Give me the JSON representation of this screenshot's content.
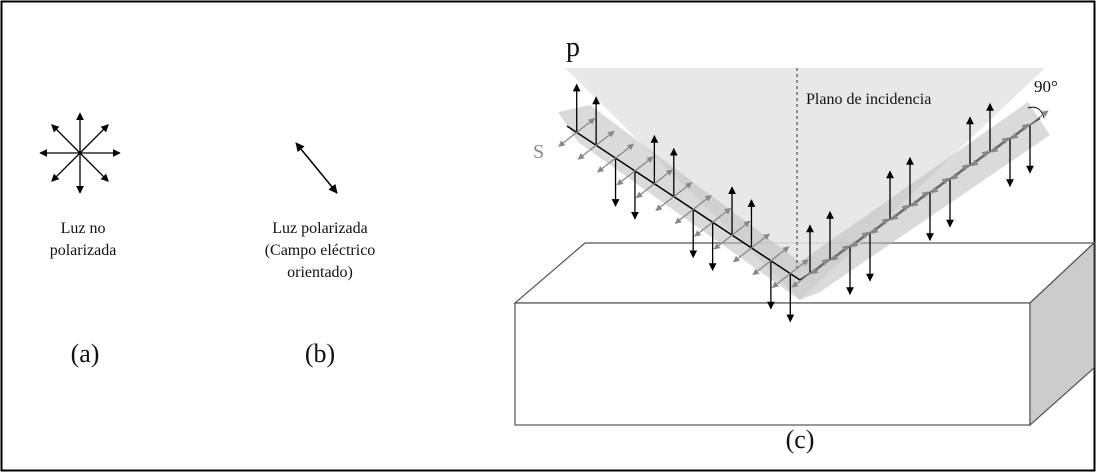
{
  "panel_a": {
    "label_lines": [
      "Luz no",
      "polarizada"
    ],
    "caption": "(a)"
  },
  "panel_b": {
    "label_lines": [
      "Luz polarizada",
      "(Campo eléctrico",
      "orientado)"
    ],
    "caption": "(b)"
  },
  "panel_c": {
    "p_label": "p",
    "s_label": "S",
    "plane_label": "Plano de incidencia",
    "angle_label": "90°",
    "caption": "(c)"
  }
}
